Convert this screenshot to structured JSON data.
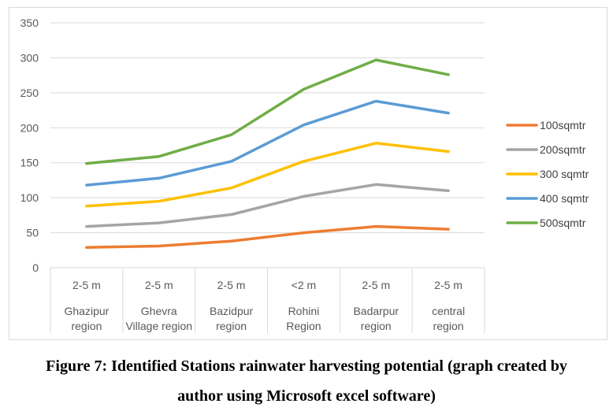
{
  "chart_data": {
    "type": "line",
    "title": "",
    "xlabel": "",
    "ylabel": "",
    "ylim": [
      0,
      350
    ],
    "yticks": [
      "0",
      "50",
      "100",
      "150",
      "200",
      "250",
      "300",
      "350"
    ],
    "grid": true,
    "legend_position": "right",
    "categories": [
      {
        "top": "2-5 m",
        "name": "Ghazipur region"
      },
      {
        "top": "2-5 m",
        "name": "Ghevra Village region"
      },
      {
        "top": "2-5 m",
        "name": "Bazidpur region"
      },
      {
        "top": "<2 m",
        "name": "Rohini Region"
      },
      {
        "top": "2-5 m",
        "name": "Badarpur region"
      },
      {
        "top": "2-5 m",
        "name": "central region"
      }
    ],
    "series": [
      {
        "name": "100sqmtr",
        "color": "#ed7d31",
        "values": [
          29,
          31,
          38,
          50,
          59,
          55
        ]
      },
      {
        "name": "200sqmtr",
        "color": "#a5a5a5",
        "values": [
          59,
          64,
          76,
          102,
          119,
          110
        ]
      },
      {
        "name": "300 sqmtr",
        "color": "#ffc000",
        "values": [
          88,
          95,
          114,
          152,
          178,
          166
        ]
      },
      {
        "name": "400 sqmtr",
        "color": "#5b9bd5",
        "values": [
          118,
          128,
          152,
          204,
          238,
          221
        ]
      },
      {
        "name": "500sqmtr",
        "color": "#70ad47",
        "values": [
          149,
          159,
          190,
          255,
          297,
          276
        ]
      }
    ]
  },
  "caption": {
    "line1": "Figure 7: Identified Stations rainwater harvesting potential (graph created by",
    "line2": "author using Microsoft excel software)"
  }
}
